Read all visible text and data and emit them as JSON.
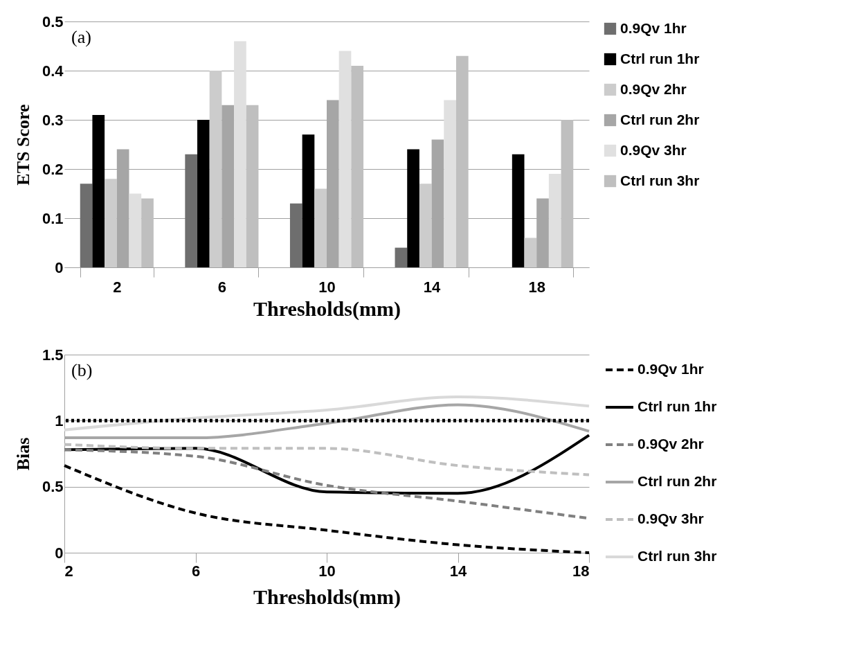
{
  "chart_data": [
    {
      "type": "bar",
      "title": "(a)",
      "xlabel": "Thresholds(mm)",
      "ylabel": "ETS Score",
      "categories": [
        "2",
        "6",
        "10",
        "14",
        "18"
      ],
      "series": [
        {
          "name": "0.9Qv 1hr",
          "color": "#6e6e6e",
          "values": [
            0.17,
            0.23,
            0.13,
            0.04,
            null
          ]
        },
        {
          "name": "Ctrl run 1hr",
          "color": "#000000",
          "values": [
            0.31,
            0.3,
            0.27,
            0.24,
            0.23
          ]
        },
        {
          "name": "0.9Qv 2hr",
          "color": "#cccccc",
          "values": [
            0.18,
            0.4,
            0.16,
            0.17,
            0.06
          ]
        },
        {
          "name": "Ctrl run 2hr",
          "color": "#a6a6a6",
          "values": [
            0.24,
            0.33,
            0.34,
            0.26,
            0.14
          ]
        },
        {
          "name": "0.9Qv 3hr",
          "color": "#e0e0e0",
          "values": [
            0.15,
            0.46,
            0.44,
            0.34,
            0.19
          ]
        },
        {
          "name": "Ctrl run 3hr",
          "color": "#bfbfbf",
          "values": [
            0.14,
            0.33,
            0.41,
            0.43,
            0.3
          ]
        }
      ],
      "ylim": [
        0,
        0.5
      ],
      "yticks": [
        0,
        0.1,
        0.2,
        0.3,
        0.4,
        0.5
      ],
      "grid": "y",
      "legend": "right"
    },
    {
      "type": "line",
      "title": "(b)",
      "xlabel": "Thresholds(mm)",
      "ylabel": "Bias",
      "x": [
        2,
        6,
        10,
        14,
        18
      ],
      "series": [
        {
          "name": "0.9Qv 1hr",
          "color": "#000000",
          "line_style": "dashed",
          "values": [
            0.66,
            0.3,
            0.17,
            0.06,
            0.0
          ]
        },
        {
          "name": "Ctrl run 1hr",
          "color": "#000000",
          "line_style": "solid",
          "values": [
            0.78,
            0.79,
            0.46,
            0.45,
            0.89
          ]
        },
        {
          "name": "0.9Qv 2hr",
          "color": "#808080",
          "line_style": "dashed",
          "values": [
            0.78,
            0.73,
            0.51,
            0.39,
            0.26
          ]
        },
        {
          "name": "Ctrl run 2hr",
          "color": "#a6a6a6",
          "line_style": "solid",
          "values": [
            0.87,
            0.87,
            0.98,
            1.12,
            0.92
          ]
        },
        {
          "name": "0.9Qv 3hr",
          "color": "#bfbfbf",
          "line_style": "dashed",
          "values": [
            0.82,
            0.79,
            0.79,
            0.66,
            0.59
          ]
        },
        {
          "name": "Ctrl run 3hr",
          "color": "#d9d9d9",
          "line_style": "solid",
          "values": [
            0.93,
            1.02,
            1.08,
            1.18,
            1.11
          ]
        }
      ],
      "ref_lines": [
        {
          "axis": "y",
          "value": 1,
          "color": "#000000",
          "line_style": "dotted"
        }
      ],
      "xlim": [
        2,
        18
      ],
      "xticks": [
        2,
        6,
        10,
        14,
        18
      ],
      "ylim": [
        0,
        1.5
      ],
      "yticks": [
        0,
        0.5,
        1,
        1.5
      ],
      "grid": "y",
      "legend": "right"
    }
  ]
}
